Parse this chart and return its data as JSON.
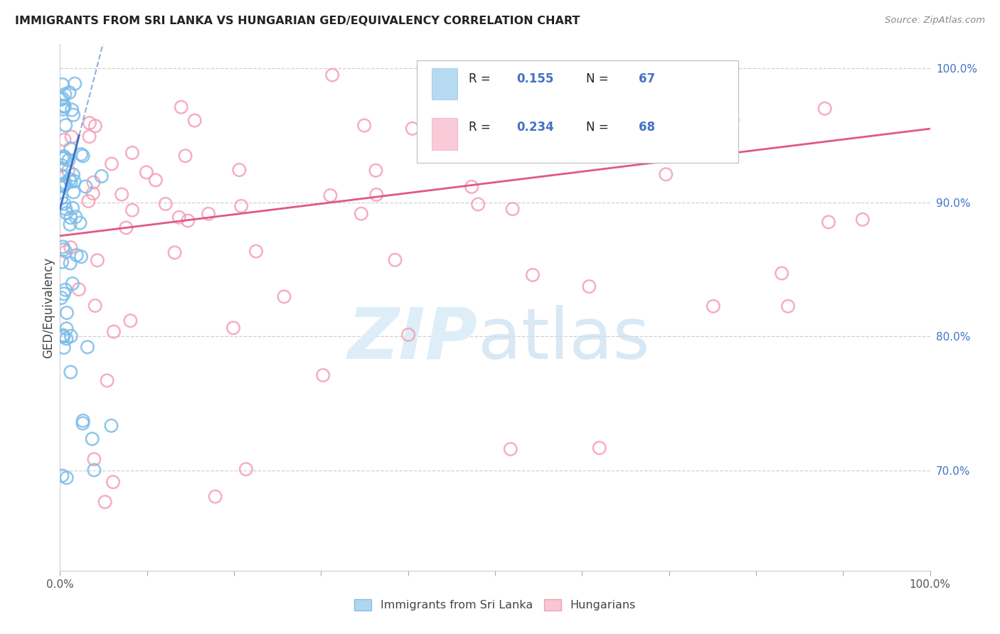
{
  "title": "IMMIGRANTS FROM SRI LANKA VS HUNGARIAN GED/EQUIVALENCY CORRELATION CHART",
  "source": "Source: ZipAtlas.com",
  "ylabel": "GED/Equivalency",
  "legend_label1": "Immigrants from Sri Lanka",
  "legend_label2": "Hungarians",
  "R1": 0.155,
  "N1": 67,
  "R2": 0.234,
  "N2": 68,
  "blue_color": "#7bbde8",
  "blue_edge": "#5a9fd4",
  "pink_color": "#f5a0b8",
  "pink_edge": "#e07898",
  "blue_line_color": "#3a6fc4",
  "pink_line_color": "#e05888",
  "right_tick_color": "#4472c4",
  "grid_color": "#d0d0d0",
  "ylim_low": 0.625,
  "ylim_high": 1.018,
  "y_ticks": [
    0.7,
    0.8,
    0.9,
    1.0
  ],
  "y_tick_labels": [
    "70.0%",
    "80.0%",
    "90.0%",
    "100.0%"
  ]
}
